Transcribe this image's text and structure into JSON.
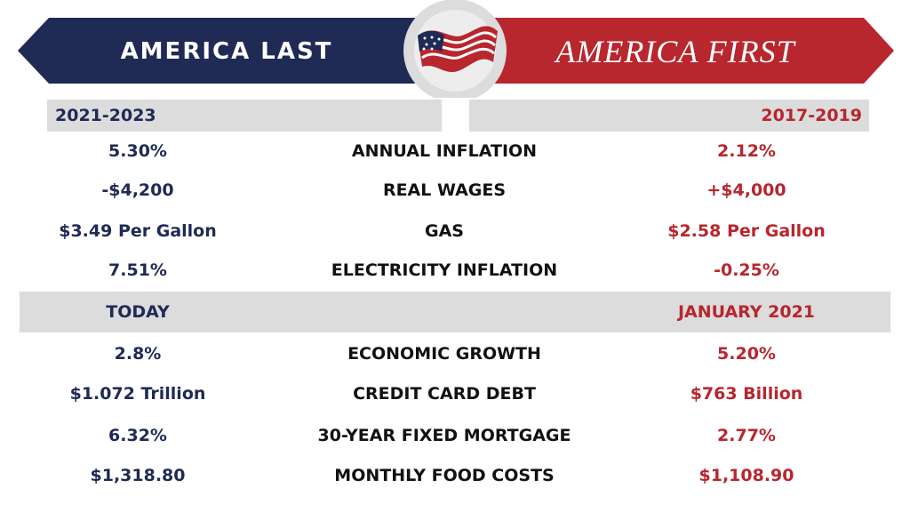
{
  "banner": {
    "left_title": "AMERICA LAST",
    "right_title": "AMERICA FIRST",
    "colors": {
      "navy": "#1f2a55",
      "red": "#b8262e",
      "gray": "#dcdcdc"
    },
    "center_icon": "american-flag-ribbon-icon"
  },
  "section1": {
    "left_period": "2021-2023",
    "right_period": "2017-2019",
    "rows": [
      {
        "left": "5.30%",
        "label": "ANNUAL INFLATION",
        "right": "2.12%"
      },
      {
        "left": "-$4,200",
        "label": "REAL WAGES",
        "right": "+$4,000"
      },
      {
        "left": "$3.49 Per Gallon",
        "label": "GAS",
        "right": "$2.58 Per Gallon"
      },
      {
        "left": "7.51%",
        "label": "ELECTRICITY INFLATION",
        "right": "-0.25%"
      }
    ]
  },
  "section2": {
    "left_period": "TODAY",
    "right_period": "JANUARY 2021",
    "rows": [
      {
        "left": "2.8%",
        "label": "ECONOMIC GROWTH",
        "right": "5.20%"
      },
      {
        "left": "$1.072 Trillion",
        "label": "CREDIT CARD DEBT",
        "right": "$763 Billion"
      },
      {
        "left": "6.32%",
        "label": "30-YEAR FIXED MORTGAGE",
        "right": "2.77%"
      },
      {
        "left": "$1,318.80",
        "label": "MONTHLY FOOD COSTS",
        "right": "$1,108.90"
      }
    ]
  }
}
